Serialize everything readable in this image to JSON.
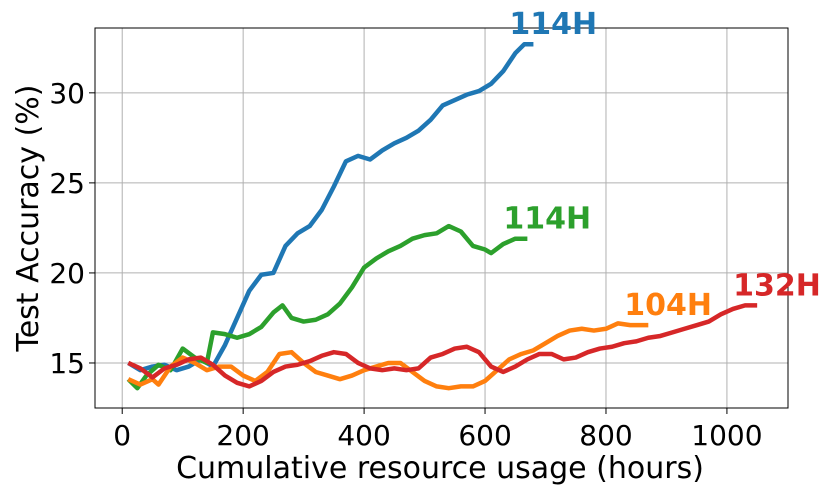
{
  "chart_data": {
    "type": "line",
    "xlabel": "Cumulative resource usage (hours)",
    "ylabel": "Test Accuracy (%)",
    "xlim": [
      -45,
      1101
    ],
    "ylim": [
      12.5,
      33.6
    ],
    "xticks": [
      0,
      200,
      400,
      600,
      800,
      1000
    ],
    "yticks": [
      15,
      20,
      25,
      30
    ],
    "grid": true,
    "series": [
      {
        "end_label": "114H",
        "color": "#1f77b4",
        "x": [
          10,
          30,
          50,
          70,
          90,
          110,
          130,
          150,
          170,
          190,
          210,
          230,
          250,
          270,
          290,
          310,
          330,
          350,
          370,
          390,
          410,
          430,
          450,
          470,
          490,
          510,
          530,
          550,
          570,
          590,
          610,
          630,
          650,
          665,
          680
        ],
        "values": [
          15.0,
          14.6,
          14.8,
          14.9,
          14.6,
          14.8,
          15.2,
          14.8,
          16.0,
          17.5,
          19.0,
          19.9,
          20.0,
          21.5,
          22.2,
          22.6,
          23.5,
          24.8,
          26.2,
          26.5,
          26.3,
          26.8,
          27.2,
          27.5,
          27.9,
          28.5,
          29.3,
          29.6,
          29.9,
          30.1,
          30.5,
          31.2,
          32.2,
          32.7,
          32.7
        ]
      },
      {
        "end_label": "114H",
        "color": "#2ca02c",
        "x": [
          10,
          25,
          40,
          60,
          80,
          100,
          120,
          140,
          150,
          170,
          190,
          210,
          230,
          250,
          265,
          280,
          300,
          320,
          340,
          360,
          380,
          400,
          420,
          440,
          460,
          480,
          500,
          520,
          540,
          560,
          580,
          600,
          610,
          630,
          650,
          670
        ],
        "values": [
          14.1,
          13.6,
          14.3,
          14.9,
          14.6,
          15.8,
          15.3,
          15.0,
          16.7,
          16.6,
          16.4,
          16.6,
          17.0,
          17.8,
          18.2,
          17.5,
          17.3,
          17.4,
          17.7,
          18.3,
          19.2,
          20.3,
          20.8,
          21.2,
          21.5,
          21.9,
          22.1,
          22.2,
          22.6,
          22.3,
          21.5,
          21.3,
          21.1,
          21.6,
          21.9,
          21.9
        ]
      },
      {
        "end_label": "104H",
        "color": "#ff7f0e",
        "x": [
          10,
          30,
          50,
          60,
          80,
          100,
          120,
          140,
          160,
          180,
          200,
          220,
          240,
          260,
          280,
          300,
          320,
          340,
          360,
          380,
          400,
          420,
          440,
          460,
          480,
          500,
          520,
          540,
          560,
          580,
          600,
          620,
          640,
          660,
          680,
          700,
          720,
          740,
          760,
          780,
          800,
          820,
          840,
          870
        ],
        "values": [
          14.1,
          13.8,
          14.1,
          13.8,
          14.8,
          15.3,
          15.0,
          14.6,
          14.8,
          14.8,
          14.3,
          14.0,
          14.5,
          15.5,
          15.6,
          15.0,
          14.5,
          14.3,
          14.1,
          14.3,
          14.6,
          14.8,
          15.0,
          15.0,
          14.5,
          14.0,
          13.7,
          13.6,
          13.7,
          13.7,
          14.0,
          14.6,
          15.2,
          15.5,
          15.7,
          16.1,
          16.5,
          16.8,
          16.9,
          16.8,
          16.9,
          17.2,
          17.1,
          17.1
        ]
      },
      {
        "end_label": "132H",
        "color": "#d62728",
        "x": [
          10,
          30,
          50,
          70,
          90,
          110,
          130,
          150,
          170,
          190,
          210,
          230,
          250,
          270,
          290,
          310,
          330,
          350,
          370,
          390,
          410,
          430,
          450,
          470,
          490,
          510,
          530,
          550,
          570,
          590,
          610,
          630,
          650,
          670,
          690,
          710,
          730,
          750,
          770,
          790,
          810,
          830,
          850,
          870,
          890,
          910,
          930,
          950,
          970,
          990,
          1010,
          1030,
          1050
        ],
        "values": [
          15.0,
          14.7,
          14.2,
          14.7,
          14.9,
          15.2,
          15.3,
          14.9,
          14.3,
          13.9,
          13.7,
          14.0,
          14.5,
          14.8,
          14.9,
          15.1,
          15.4,
          15.6,
          15.5,
          15.0,
          14.7,
          14.6,
          14.7,
          14.6,
          14.7,
          15.3,
          15.5,
          15.8,
          15.9,
          15.6,
          14.8,
          14.5,
          14.8,
          15.2,
          15.5,
          15.5,
          15.2,
          15.3,
          15.6,
          15.8,
          15.9,
          16.1,
          16.2,
          16.4,
          16.5,
          16.7,
          16.9,
          17.1,
          17.3,
          17.7,
          18.0,
          18.2,
          18.2
        ]
      }
    ]
  }
}
